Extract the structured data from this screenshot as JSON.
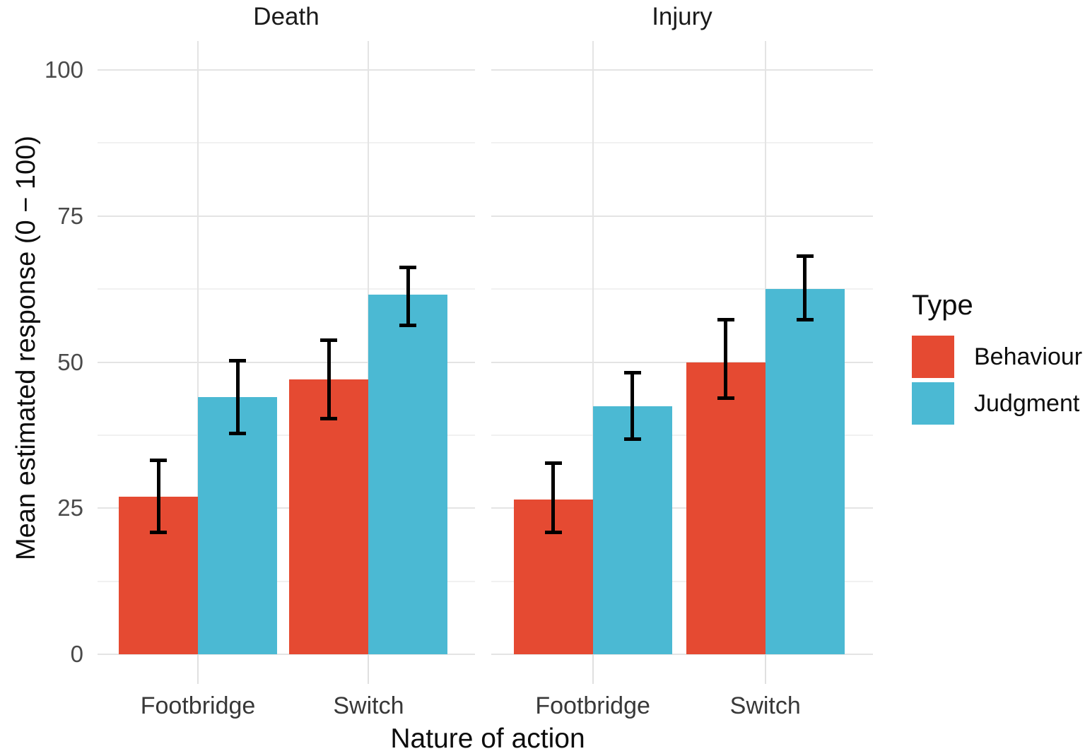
{
  "chart_data": {
    "type": "bar",
    "title": "",
    "xlabel": "Nature of action",
    "ylabel": "Mean estimated response (0 − 100)",
    "ylim": [
      0,
      100
    ],
    "yticks": [
      0,
      25,
      50,
      75,
      100
    ],
    "y_minor_gridlines": [
      12.5,
      37.5,
      62.5,
      87.5
    ],
    "grid": true,
    "error_bars": true,
    "facets": [
      {
        "label": "Death",
        "categories": [
          "Footbridge",
          "Switch"
        ],
        "series": [
          {
            "name": "Behaviour",
            "color": "#E54A32",
            "values": [
              27,
              47
            ],
            "ci_low": [
              20.5,
              40
            ],
            "ci_high": [
              33.5,
              54
            ]
          },
          {
            "name": "Judgment",
            "color": "#4BB9D3",
            "values": [
              44,
              61.5
            ],
            "ci_low": [
              37.5,
              56
            ],
            "ci_high": [
              50.5,
              66.5
            ]
          }
        ]
      },
      {
        "label": "Injury",
        "categories": [
          "Footbridge",
          "Switch"
        ],
        "series": [
          {
            "name": "Behaviour",
            "color": "#E54A32",
            "values": [
              26.5,
              50
            ],
            "ci_low": [
              20.5,
              43.5
            ],
            "ci_high": [
              33,
              57.5
            ]
          },
          {
            "name": "Judgment",
            "color": "#4BB9D3",
            "values": [
              42.5,
              62.5
            ],
            "ci_low": [
              36.5,
              57
            ],
            "ci_high": [
              48.5,
              68.5
            ]
          }
        ]
      }
    ],
    "legend": {
      "title": "Type",
      "position": "right",
      "entries": [
        {
          "label": "Behaviour",
          "color": "#E54A32"
        },
        {
          "label": "Judgment",
          "color": "#4BB9D3"
        }
      ]
    },
    "colors": {
      "behaviour": "#E54A32",
      "judgment": "#4BB9D3",
      "gridline": "#e4e4e4",
      "errorbar": "#000000"
    }
  }
}
